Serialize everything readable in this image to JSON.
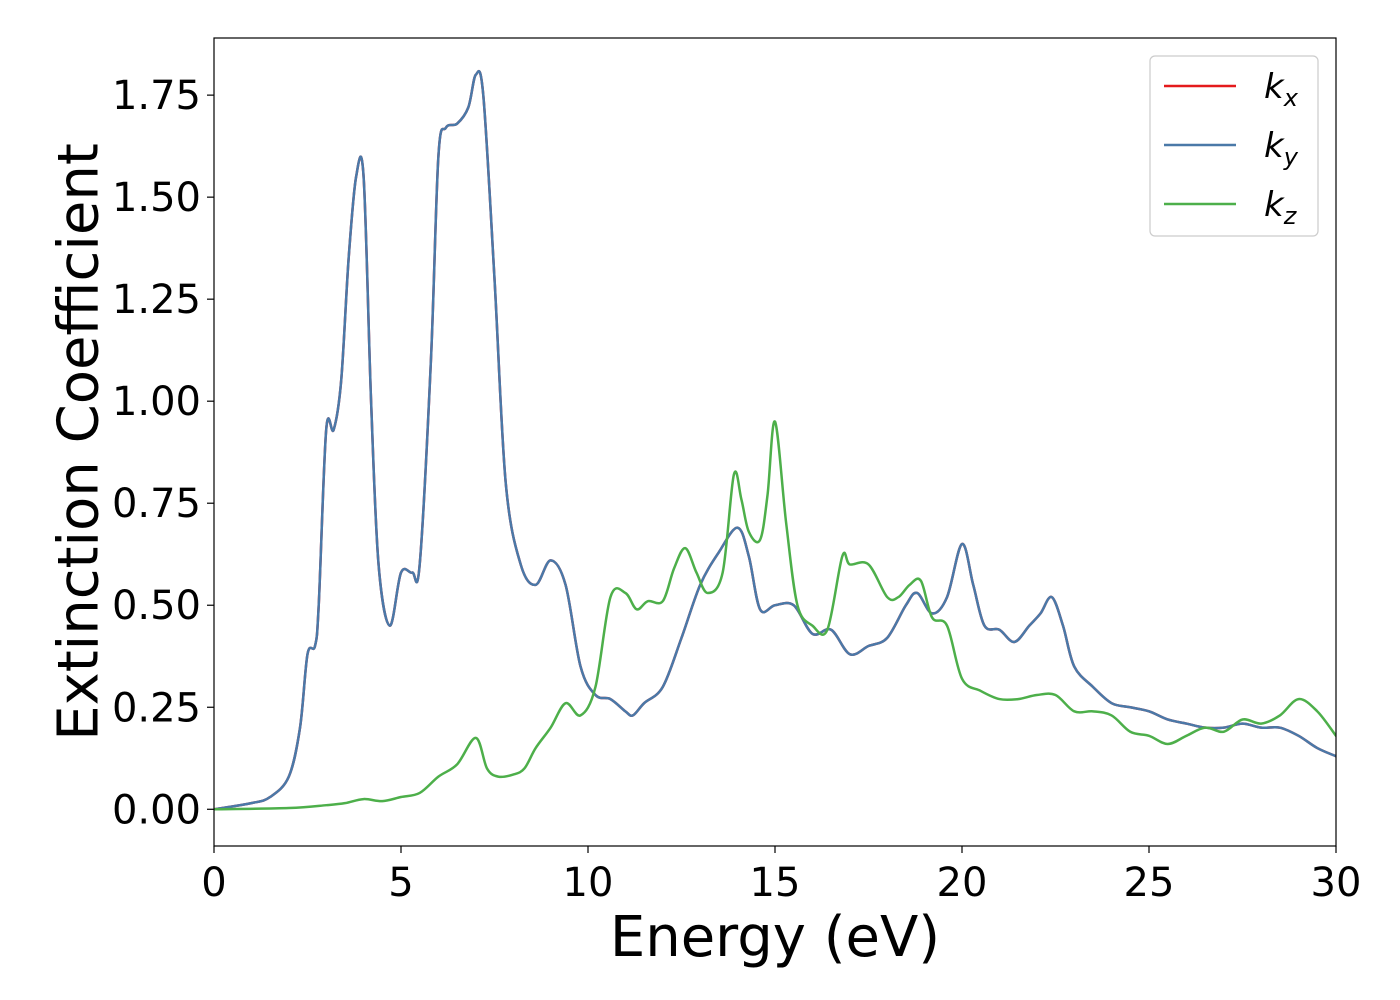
{
  "chart_data": {
    "type": "line",
    "xlabel": "Energy (eV)",
    "ylabel": "Extinction Coefficient",
    "xlim": [
      0,
      30
    ],
    "ylim": [
      -0.09,
      1.89
    ],
    "xticks": [
      0,
      5,
      10,
      15,
      20,
      25,
      30
    ],
    "xtick_labels": [
      "0",
      "5",
      "10",
      "15",
      "20",
      "25",
      "30"
    ],
    "yticks": [
      0.0,
      0.25,
      0.5,
      0.75,
      1.0,
      1.25,
      1.5,
      1.75
    ],
    "ytick_labels": [
      "0.00",
      "0.25",
      "0.50",
      "0.75",
      "1.00",
      "1.25",
      "1.50",
      "1.75"
    ],
    "grid": false,
    "legend_position": "top-right",
    "series": [
      {
        "name": "k_x",
        "label_base": "k",
        "label_sub": "x",
        "color": "#e41a1c",
        "x": [
          0,
          1,
          1.5,
          2,
          2.3,
          2.5,
          2.7,
          2.8,
          3.0,
          3.2,
          3.4,
          3.6,
          3.8,
          4.0,
          4.2,
          4.4,
          4.7,
          5.0,
          5.3,
          5.5,
          5.8,
          6.0,
          6.2,
          6.5,
          6.8,
          7.0,
          7.2,
          7.5,
          7.8,
          8.2,
          8.6,
          9.0,
          9.4,
          9.8,
          10.2,
          10.6,
          11.0,
          11.2,
          11.5,
          12.0,
          12.5,
          13.0,
          13.5,
          14.0,
          14.3,
          14.6,
          15.0,
          15.5,
          16.0,
          16.5,
          17.0,
          17.5,
          18.0,
          18.5,
          18.8,
          19.2,
          19.6,
          20.0,
          20.3,
          20.6,
          21.0,
          21.4,
          21.8,
          22.1,
          22.4,
          22.7,
          23.0,
          23.5,
          24.0,
          24.5,
          25.0,
          25.5,
          26.0,
          26.5,
          27.0,
          27.5,
          28.0,
          28.5,
          29.0,
          29.5,
          30.0
        ],
        "y": [
          0,
          0.015,
          0.03,
          0.08,
          0.2,
          0.38,
          0.4,
          0.5,
          0.93,
          0.93,
          1.05,
          1.35,
          1.55,
          1.55,
          1.0,
          0.6,
          0.45,
          0.58,
          0.58,
          0.6,
          1.1,
          1.6,
          1.67,
          1.68,
          1.72,
          1.8,
          1.75,
          1.3,
          0.8,
          0.6,
          0.55,
          0.61,
          0.55,
          0.35,
          0.28,
          0.27,
          0.24,
          0.23,
          0.26,
          0.3,
          0.42,
          0.55,
          0.63,
          0.69,
          0.62,
          0.49,
          0.5,
          0.5,
          0.43,
          0.44,
          0.38,
          0.4,
          0.42,
          0.5,
          0.53,
          0.48,
          0.52,
          0.65,
          0.55,
          0.45,
          0.44,
          0.41,
          0.45,
          0.48,
          0.52,
          0.45,
          0.35,
          0.3,
          0.26,
          0.25,
          0.24,
          0.22,
          0.21,
          0.2,
          0.2,
          0.21,
          0.2,
          0.2,
          0.18,
          0.15,
          0.13
        ]
      },
      {
        "name": "k_y",
        "label_base": "k",
        "label_sub": "y",
        "color": "#4a79a8",
        "x": [
          0,
          1,
          1.5,
          2,
          2.3,
          2.5,
          2.7,
          2.8,
          3.0,
          3.2,
          3.4,
          3.6,
          3.8,
          4.0,
          4.2,
          4.4,
          4.7,
          5.0,
          5.3,
          5.5,
          5.8,
          6.0,
          6.2,
          6.5,
          6.8,
          7.0,
          7.2,
          7.5,
          7.8,
          8.2,
          8.6,
          9.0,
          9.4,
          9.8,
          10.2,
          10.6,
          11.0,
          11.2,
          11.5,
          12.0,
          12.5,
          13.0,
          13.5,
          14.0,
          14.3,
          14.6,
          15.0,
          15.5,
          16.0,
          16.5,
          17.0,
          17.5,
          18.0,
          18.5,
          18.8,
          19.2,
          19.6,
          20.0,
          20.3,
          20.6,
          21.0,
          21.4,
          21.8,
          22.1,
          22.4,
          22.7,
          23.0,
          23.5,
          24.0,
          24.5,
          25.0,
          25.5,
          26.0,
          26.5,
          27.0,
          27.5,
          28.0,
          28.5,
          29.0,
          29.5,
          30.0
        ],
        "y": [
          0,
          0.015,
          0.03,
          0.08,
          0.2,
          0.38,
          0.4,
          0.5,
          0.93,
          0.93,
          1.05,
          1.35,
          1.55,
          1.55,
          1.0,
          0.6,
          0.45,
          0.58,
          0.58,
          0.6,
          1.1,
          1.6,
          1.67,
          1.68,
          1.72,
          1.8,
          1.75,
          1.3,
          0.8,
          0.6,
          0.55,
          0.61,
          0.55,
          0.35,
          0.28,
          0.27,
          0.24,
          0.23,
          0.26,
          0.3,
          0.42,
          0.55,
          0.63,
          0.69,
          0.62,
          0.49,
          0.5,
          0.5,
          0.43,
          0.44,
          0.38,
          0.4,
          0.42,
          0.5,
          0.53,
          0.48,
          0.52,
          0.65,
          0.55,
          0.45,
          0.44,
          0.41,
          0.45,
          0.48,
          0.52,
          0.45,
          0.35,
          0.3,
          0.26,
          0.25,
          0.24,
          0.22,
          0.21,
          0.2,
          0.2,
          0.21,
          0.2,
          0.2,
          0.18,
          0.15,
          0.13
        ]
      },
      {
        "name": "k_z",
        "label_base": "k",
        "label_sub": "z",
        "color": "#4daf4a",
        "x": [
          0,
          2,
          3,
          3.5,
          4.0,
          4.5,
          5.0,
          5.5,
          6.0,
          6.5,
          7.0,
          7.3,
          7.6,
          8.0,
          8.3,
          8.6,
          9.0,
          9.4,
          9.8,
          10.2,
          10.6,
          11.0,
          11.3,
          11.6,
          12.0,
          12.3,
          12.6,
          12.9,
          13.2,
          13.6,
          13.9,
          14.1,
          14.3,
          14.6,
          14.8,
          15.0,
          15.3,
          15.6,
          16.0,
          16.4,
          16.8,
          17.0,
          17.5,
          18.0,
          18.3,
          18.6,
          18.9,
          19.2,
          19.6,
          20.0,
          20.5,
          21.0,
          21.5,
          22.0,
          22.5,
          23.0,
          23.5,
          24.0,
          24.5,
          25.0,
          25.5,
          26.0,
          26.5,
          27.0,
          27.5,
          28.0,
          28.5,
          29.0,
          29.5,
          30.0
        ],
        "y": [
          0,
          0.003,
          0.01,
          0.015,
          0.025,
          0.02,
          0.03,
          0.04,
          0.08,
          0.11,
          0.175,
          0.1,
          0.08,
          0.085,
          0.1,
          0.15,
          0.2,
          0.26,
          0.23,
          0.3,
          0.52,
          0.53,
          0.49,
          0.51,
          0.51,
          0.59,
          0.64,
          0.58,
          0.53,
          0.58,
          0.82,
          0.76,
          0.68,
          0.66,
          0.77,
          0.95,
          0.7,
          0.5,
          0.45,
          0.44,
          0.62,
          0.6,
          0.6,
          0.52,
          0.52,
          0.55,
          0.56,
          0.47,
          0.45,
          0.32,
          0.29,
          0.27,
          0.27,
          0.28,
          0.28,
          0.24,
          0.24,
          0.23,
          0.19,
          0.18,
          0.16,
          0.18,
          0.2,
          0.19,
          0.22,
          0.21,
          0.23,
          0.27,
          0.24,
          0.18
        ]
      }
    ]
  }
}
